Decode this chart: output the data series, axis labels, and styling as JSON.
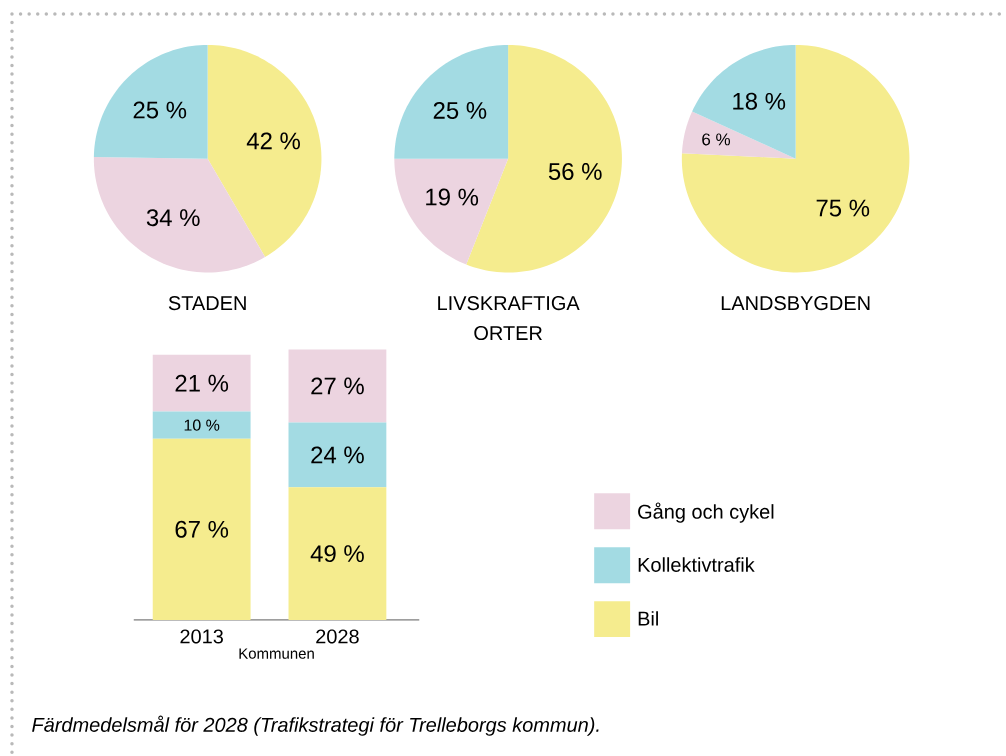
{
  "chart_data": [
    {
      "type": "pie",
      "title": "STADEN",
      "categories": [
        null,
        null,
        null
      ],
      "values": [
        42,
        34,
        25
      ],
      "colors": [
        "#f5ec8e",
        "#ecd4e0",
        "#a3dbe3"
      ],
      "value_labels": [
        "42 %",
        "34 %",
        "25 %"
      ]
    },
    {
      "type": "pie",
      "title": "LIVSKRAFTIGA ORTER",
      "categories": [
        null,
        null,
        null
      ],
      "values": [
        56,
        19,
        25
      ],
      "colors": [
        "#f5ec8e",
        "#ecd4e0",
        "#a3dbe3"
      ],
      "value_labels": [
        "56 %",
        "19 %",
        "25 %"
      ]
    },
    {
      "type": "pie",
      "title": "LANDSBYGDEN",
      "categories": [
        null,
        null,
        null
      ],
      "values": [
        75,
        6,
        18
      ],
      "colors": [
        "#f5ec8e",
        "#ecd4e0",
        "#a3dbe3"
      ],
      "value_labels": [
        "75 %",
        "6 %",
        "18 %"
      ]
    },
    {
      "type": "bar",
      "stacked": true,
      "categories": [
        "2013",
        "2028"
      ],
      "xlabel": "Kommunen",
      "legend": "right",
      "series": [
        {
          "name": "Bil",
          "color": "#f5ec8e",
          "values": [
            67,
            49
          ],
          "value_labels": [
            "67 %",
            "49 %"
          ]
        },
        {
          "name": "Kollektivtrafik",
          "color": "#a3dbe3",
          "values": [
            10,
            24
          ],
          "value_labels": [
            "10 %",
            "24 %"
          ]
        },
        {
          "name": "Gång och cykel",
          "color": "#ecd4e0",
          "values": [
            21,
            27
          ],
          "value_labels": [
            "21 %",
            "27 %"
          ]
        }
      ],
      "annotations": [
        "Färdmedelsmål för 2028 (Trafikstrategi för Trelleborgs kommun)."
      ]
    }
  ]
}
